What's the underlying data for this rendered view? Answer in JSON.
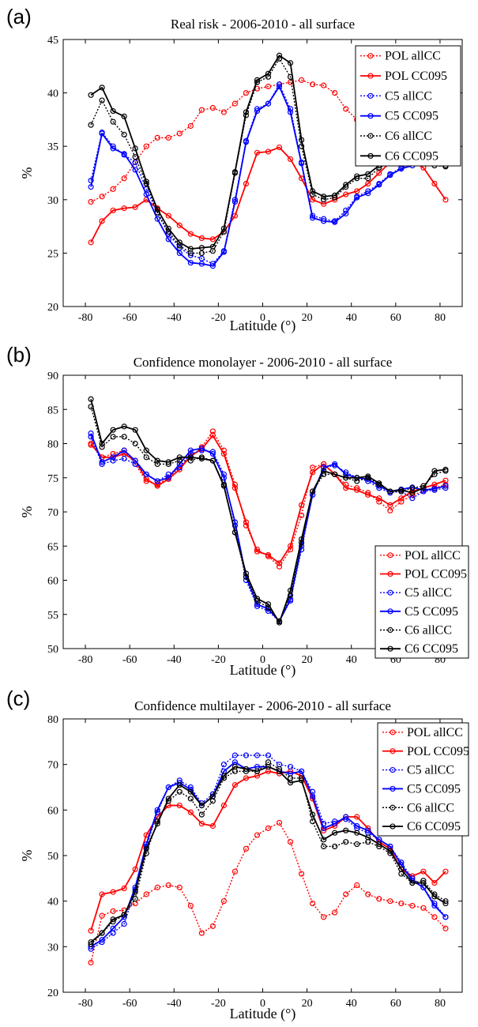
{
  "chart_data": [
    {
      "type": "line",
      "panel_label": "(a)",
      "title": "Real risk -   2006-2010 - all surface",
      "xlabel": "Latitude (°)",
      "ylabel": "%",
      "xlim": [
        -90,
        90
      ],
      "ylim": [
        20,
        45
      ],
      "xticks": [
        -80,
        -60,
        -40,
        -20,
        0,
        20,
        40,
        60,
        80
      ],
      "yticks": [
        20,
        25,
        30,
        35,
        40,
        45
      ],
      "legend_position": "top-right",
      "x": [
        -77.5,
        -72.5,
        -67.5,
        -62.5,
        -57.5,
        -52.5,
        -47.5,
        -42.5,
        -37.5,
        -32.5,
        -27.5,
        -22.5,
        -17.5,
        -12.5,
        -7.5,
        -2.5,
        2.5,
        7.5,
        12.5,
        17.5,
        22.5,
        27.5,
        32.5,
        37.5,
        42.5,
        47.5,
        52.5,
        57.5,
        62.5,
        67.5,
        72.5,
        77.5,
        82.5
      ],
      "series": [
        {
          "name": "POL allCC",
          "color": "#ff0000",
          "style": "dotted",
          "values": [
            29.8,
            30.3,
            31.0,
            32.0,
            33.5,
            35.0,
            35.8,
            35.8,
            36.2,
            36.9,
            38.4,
            38.6,
            38.2,
            39.0,
            40.0,
            40.4,
            40.6,
            40.8,
            41.0,
            41.2,
            40.8,
            40.7,
            40.0,
            38.5,
            37.5,
            36.5,
            35.5,
            35.0,
            34.5,
            34.2,
            34.0,
            33.8,
            33.6
          ]
        },
        {
          "name": "POL CC095",
          "color": "#ff0000",
          "style": "solid",
          "values": [
            26.0,
            28.0,
            29.0,
            29.2,
            29.3,
            30.0,
            29.2,
            28.5,
            27.6,
            26.8,
            26.4,
            26.3,
            27.0,
            28.5,
            31.5,
            34.4,
            34.5,
            34.9,
            33.8,
            32.0,
            30.0,
            29.6,
            30.0,
            30.5,
            30.8,
            31.5,
            32.5,
            33.5,
            33.8,
            33.6,
            33.0,
            31.5,
            30.0
          ]
        },
        {
          "name": "C5 allCC",
          "color": "#0000ff",
          "style": "dotted",
          "values": [
            31.8,
            36.3,
            35.0,
            34.2,
            33.5,
            31.0,
            28.8,
            26.8,
            25.5,
            24.8,
            24.5,
            24.0,
            25.2,
            30.0,
            35.5,
            38.5,
            39.0,
            40.8,
            38.5,
            33.5,
            28.5,
            28.2,
            28.0,
            29.0,
            30.3,
            30.8,
            31.5,
            32.4,
            33.0,
            33.4,
            33.5,
            33.6,
            33.6
          ]
        },
        {
          "name": "C5 CC095",
          "color": "#0000ff",
          "style": "solid",
          "values": [
            31.2,
            36.2,
            34.8,
            34.3,
            32.8,
            30.5,
            28.2,
            26.3,
            25.0,
            24.1,
            24.0,
            23.8,
            25.1,
            29.8,
            35.4,
            38.3,
            39.0,
            40.6,
            38.2,
            33.4,
            28.3,
            28.0,
            27.9,
            28.7,
            30.2,
            30.6,
            31.4,
            32.3,
            32.9,
            33.2,
            33.4,
            33.5,
            33.5
          ]
        },
        {
          "name": "C6 allCC",
          "color": "#000000",
          "style": "dotted",
          "values": [
            37.0,
            39.3,
            37.3,
            36.1,
            34.0,
            31.5,
            28.8,
            27.0,
            25.7,
            25.0,
            25.0,
            25.2,
            27.0,
            32.5,
            37.9,
            41.0,
            41.5,
            43.2,
            41.5,
            35.0,
            30.5,
            30.0,
            30.2,
            31.2,
            32.0,
            32.0,
            33.0,
            33.5,
            33.8,
            33.6,
            33.5,
            33.2,
            33.1
          ]
        },
        {
          "name": "C6 CC095",
          "color": "#000000",
          "style": "solid",
          "values": [
            39.8,
            40.5,
            38.3,
            37.8,
            34.8,
            31.7,
            29.1,
            27.3,
            26.0,
            25.4,
            25.5,
            25.6,
            27.3,
            32.6,
            38.2,
            41.2,
            41.8,
            43.5,
            42.8,
            35.6,
            30.8,
            30.3,
            30.4,
            31.4,
            32.2,
            32.4,
            33.2,
            33.6,
            33.9,
            33.8,
            33.6,
            33.4,
            33.2
          ]
        }
      ]
    },
    {
      "type": "line",
      "panel_label": "(b)",
      "title": "Confidence monolayer  - 2006-2010 - all surface",
      "xlabel": "Latitude (°)",
      "ylabel": "%",
      "xlim": [
        -90,
        90
      ],
      "ylim": [
        50,
        90
      ],
      "xticks": [
        -80,
        -60,
        -40,
        -20,
        0,
        20,
        40,
        60,
        80
      ],
      "yticks": [
        50,
        55,
        60,
        65,
        70,
        75,
        80,
        85,
        90
      ],
      "legend_position": "bottom-right",
      "x": [
        -77.5,
        -72.5,
        -67.5,
        -62.5,
        -57.5,
        -52.5,
        -47.5,
        -42.5,
        -37.5,
        -32.5,
        -27.5,
        -22.5,
        -17.5,
        -12.5,
        -7.5,
        -2.5,
        2.5,
        7.5,
        12.5,
        17.5,
        22.5,
        27.5,
        32.5,
        37.5,
        42.5,
        47.5,
        52.5,
        57.5,
        62.5,
        67.5,
        72.5,
        77.5,
        82.5
      ],
      "series": [
        {
          "name": "POL allCC",
          "color": "#ff0000",
          "style": "dotted",
          "values": [
            79.8,
            78.0,
            78.5,
            79.0,
            77.0,
            74.5,
            74.0,
            75.0,
            76.5,
            78.0,
            79.5,
            81.8,
            79.0,
            74.0,
            68.0,
            64.5,
            63.5,
            62.0,
            64.5,
            69.5,
            76.5,
            77.0,
            75.5,
            74.0,
            73.5,
            72.8,
            71.5,
            70.2,
            71.5,
            72.5,
            73.0,
            73.5,
            74.0
          ]
        },
        {
          "name": "POL CC095",
          "color": "#ff0000",
          "style": "solid",
          "values": [
            80.0,
            78.0,
            78.0,
            78.5,
            77.5,
            74.8,
            73.8,
            74.8,
            76.2,
            78.2,
            79.2,
            81.2,
            78.5,
            73.5,
            68.5,
            64.2,
            63.7,
            62.5,
            65.0,
            71.0,
            75.8,
            77.0,
            75.5,
            73.5,
            73.2,
            72.5,
            72.0,
            71.0,
            72.0,
            73.0,
            73.5,
            74.0,
            74.6
          ]
        },
        {
          "name": "C5 allCC",
          "color": "#0000ff",
          "style": "dotted",
          "values": [
            81.0,
            77.0,
            77.5,
            77.8,
            77.0,
            75.5,
            74.5,
            75.5,
            76.5,
            78.5,
            79.0,
            78.8,
            75.5,
            68.0,
            60.0,
            56.2,
            55.5,
            54.0,
            57.0,
            64.5,
            72.5,
            76.5,
            76.8,
            75.8,
            75.0,
            74.5,
            73.5,
            72.8,
            73.0,
            72.0,
            73.0,
            73.2,
            73.5
          ]
        },
        {
          "name": "C5 CC095",
          "color": "#0000ff",
          "style": "solid",
          "values": [
            81.5,
            77.3,
            78.0,
            79.0,
            77.5,
            75.5,
            74.5,
            75.0,
            77.0,
            79.0,
            79.3,
            78.5,
            75.0,
            68.5,
            60.5,
            56.5,
            55.8,
            54.0,
            57.2,
            65.0,
            72.5,
            76.5,
            77.0,
            75.5,
            75.0,
            74.8,
            73.8,
            73.0,
            73.3,
            73.6,
            73.2,
            73.4,
            73.8
          ]
        },
        {
          "name": "C6 allCC",
          "color": "#000000",
          "style": "dotted",
          "values": [
            85.4,
            79.5,
            81.0,
            81.0,
            80.0,
            78.0,
            77.0,
            77.0,
            77.5,
            77.5,
            78.0,
            77.5,
            74.0,
            67.0,
            60.5,
            57.0,
            56.0,
            54.0,
            57.8,
            65.5,
            73.0,
            75.5,
            75.5,
            75.0,
            74.5,
            75.0,
            74.0,
            73.0,
            73.0,
            73.5,
            73.8,
            75.5,
            76.0
          ]
        },
        {
          "name": "C6 CC095",
          "color": "#000000",
          "style": "solid",
          "values": [
            86.5,
            80.0,
            82.0,
            82.5,
            82.0,
            79.0,
            77.5,
            77.3,
            78.0,
            78.0,
            77.8,
            77.5,
            73.8,
            67.0,
            61.0,
            57.3,
            56.5,
            53.8,
            58.5,
            66.0,
            73.0,
            76.0,
            75.5,
            75.0,
            75.0,
            75.2,
            74.2,
            73.0,
            73.2,
            72.8,
            73.5,
            76.0,
            76.2
          ]
        }
      ]
    },
    {
      "type": "line",
      "panel_label": "(c)",
      "title": "Confidence multilayer - 2006-2010 - all surface",
      "xlabel": "Latitude (°)",
      "ylabel": "%",
      "xlim": [
        -90,
        90
      ],
      "ylim": [
        20,
        80
      ],
      "xticks": [
        -80,
        -60,
        -40,
        -20,
        0,
        20,
        40,
        60,
        80
      ],
      "yticks": [
        20,
        30,
        40,
        50,
        60,
        70,
        80
      ],
      "legend_position": "top-right",
      "x": [
        -77.5,
        -72.5,
        -67.5,
        -62.5,
        -57.5,
        -52.5,
        -47.5,
        -42.5,
        -37.5,
        -32.5,
        -27.5,
        -22.5,
        -17.5,
        -12.5,
        -7.5,
        -2.5,
        2.5,
        7.5,
        12.5,
        17.5,
        22.5,
        27.5,
        32.5,
        37.5,
        42.5,
        47.5,
        52.5,
        57.5,
        62.5,
        67.5,
        72.5,
        77.5,
        82.5
      ],
      "series": [
        {
          "name": "POL allCC",
          "color": "#ff0000",
          "style": "dotted",
          "values": [
            26.5,
            36.8,
            37.8,
            38.0,
            39.5,
            41.5,
            43.0,
            43.5,
            43.0,
            39.0,
            33.0,
            34.5,
            40.0,
            46.5,
            51.5,
            54.5,
            56.0,
            57.2,
            53.0,
            46.0,
            39.5,
            36.5,
            37.5,
            41.5,
            43.5,
            41.5,
            40.5,
            40.0,
            39.5,
            39.0,
            38.5,
            36.5,
            34.0
          ]
        },
        {
          "name": "POL CC095",
          "color": "#ff0000",
          "style": "solid",
          "values": [
            33.5,
            41.5,
            42.0,
            42.8,
            47.0,
            54.5,
            58.5,
            61.0,
            61.0,
            59.5,
            57.0,
            56.5,
            61.0,
            65.5,
            67.0,
            67.5,
            68.5,
            68.0,
            68.5,
            67.5,
            62.5,
            55.5,
            56.5,
            58.5,
            58.5,
            56.0,
            53.0,
            51.5,
            47.0,
            45.5,
            46.5,
            44.0,
            46.5
          ]
        },
        {
          "name": "C5 allCC",
          "color": "#0000ff",
          "style": "dotted",
          "values": [
            29.5,
            31.0,
            33.0,
            35.0,
            42.5,
            52.0,
            59.5,
            65.0,
            66.5,
            65.0,
            61.5,
            63.5,
            70.0,
            72.0,
            72.0,
            72.0,
            72.0,
            70.0,
            69.5,
            68.5,
            64.0,
            57.0,
            57.5,
            58.0,
            56.0,
            55.0,
            53.5,
            52.0,
            48.5,
            45.0,
            43.0,
            39.5,
            36.5
          ]
        },
        {
          "name": "C5 CC095",
          "color": "#0000ff",
          "style": "solid",
          "values": [
            30.0,
            31.5,
            34.0,
            36.5,
            43.0,
            52.5,
            60.0,
            65.0,
            66.0,
            64.5,
            61.0,
            63.0,
            68.5,
            70.5,
            69.0,
            69.5,
            69.5,
            68.5,
            68.0,
            68.5,
            63.0,
            56.0,
            57.0,
            58.5,
            56.5,
            55.5,
            53.5,
            52.0,
            48.0,
            44.5,
            43.0,
            39.0,
            36.5
          ]
        },
        {
          "name": "C6 allCC",
          "color": "#000000",
          "style": "dotted",
          "values": [
            30.5,
            33.0,
            35.5,
            37.0,
            40.5,
            50.5,
            57.5,
            62.0,
            64.0,
            62.5,
            59.0,
            62.0,
            67.0,
            68.5,
            68.5,
            68.5,
            70.5,
            69.0,
            67.0,
            67.0,
            57.5,
            52.0,
            52.0,
            53.0,
            52.5,
            53.0,
            52.0,
            50.5,
            46.0,
            44.0,
            44.5,
            41.5,
            40.0
          ]
        },
        {
          "name": "C6 CC095",
          "color": "#000000",
          "style": "solid",
          "values": [
            31.0,
            33.0,
            36.0,
            37.0,
            42.0,
            51.5,
            57.0,
            62.5,
            65.5,
            64.0,
            61.0,
            63.0,
            67.5,
            69.5,
            69.0,
            68.5,
            69.5,
            68.5,
            66.0,
            66.5,
            59.0,
            53.5,
            55.0,
            55.5,
            55.0,
            54.0,
            52.5,
            51.0,
            47.0,
            44.0,
            44.0,
            41.0,
            39.5
          ]
        }
      ]
    }
  ]
}
